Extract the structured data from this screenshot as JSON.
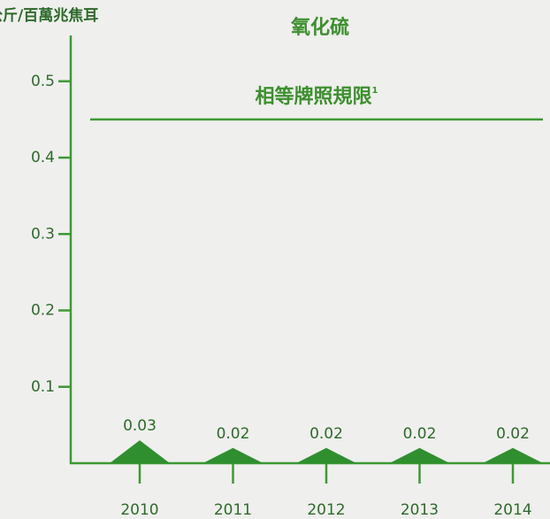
{
  "chart_data": {
    "type": "bar",
    "title": "氧化硫",
    "y_label": "公斤/百萬兆焦耳",
    "categories": [
      "2010",
      "2011",
      "2012",
      "2013",
      "2014"
    ],
    "values": [
      0.03,
      0.02,
      0.02,
      0.02,
      0.02
    ],
    "color": "#2f8f2f",
    "ylim": [
      0,
      0.56
    ],
    "yticks": [
      0.1,
      0.2,
      0.3,
      0.4,
      0.5
    ],
    "reference": {
      "value": 0.45,
      "label": "相等牌照規限",
      "note": "1"
    }
  }
}
